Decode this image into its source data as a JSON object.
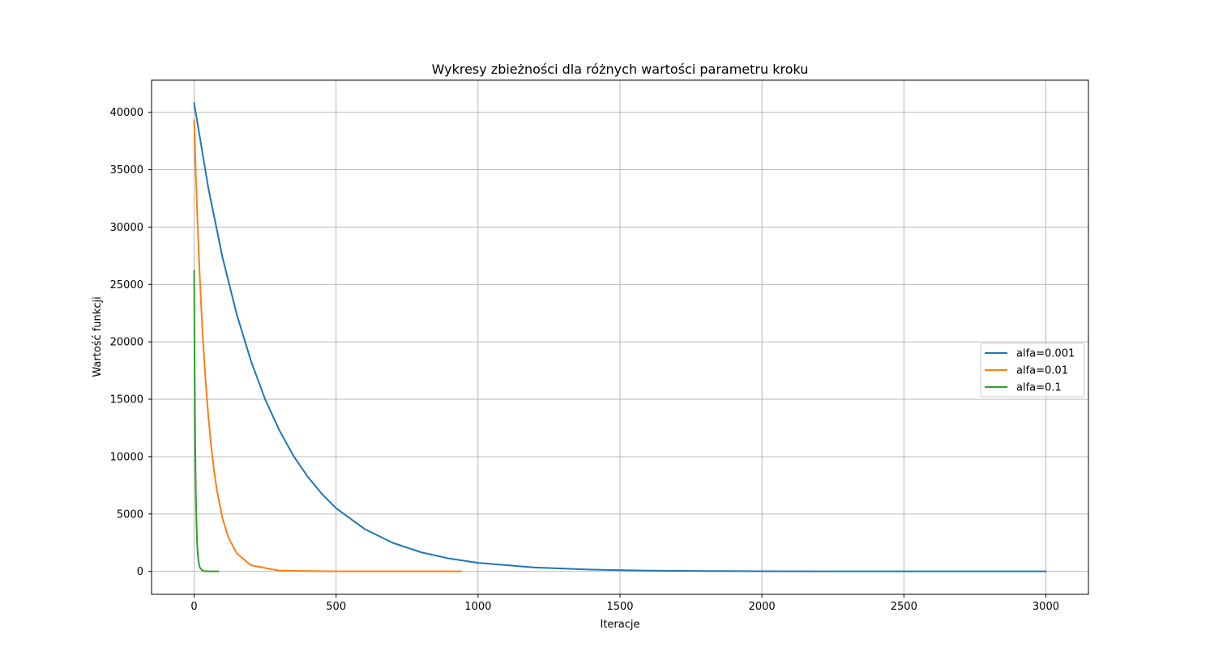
{
  "chart_data": {
    "type": "line",
    "title": "Wykresy zbieżności dla różnych wartości parametru kroku",
    "xlabel": "Iteracje",
    "ylabel": "Wartość funkcji",
    "xlim": [
      -150,
      3150
    ],
    "ylim": [
      -2000,
      42800
    ],
    "xticks": [
      0,
      500,
      1000,
      1500,
      2000,
      2500,
      3000
    ],
    "yticks": [
      0,
      5000,
      10000,
      15000,
      20000,
      25000,
      30000,
      35000,
      40000,
      45000
    ],
    "ytick_labels_shown": [
      0,
      5000,
      10000,
      15000,
      20000,
      25000,
      30000,
      35000,
      40000
    ],
    "grid": true,
    "legend_position": "center-right",
    "series": [
      {
        "name": "alfa=0.001",
        "color": "#1f77b4",
        "x": [
          0,
          50,
          100,
          150,
          200,
          250,
          300,
          350,
          400,
          450,
          500,
          600,
          700,
          800,
          900,
          1000,
          1200,
          1400,
          1600,
          1800,
          2000,
          2200,
          2500,
          2800,
          3000
        ],
        "values": [
          40800,
          33400,
          27350,
          22400,
          18350,
          15000,
          12300,
          10050,
          8250,
          6750,
          5500,
          3700,
          2480,
          1660,
          1110,
          745,
          335,
          150,
          67,
          30,
          14,
          6,
          2,
          1,
          0
        ]
      },
      {
        "name": "alfa=0.01",
        "color": "#ff7f0e",
        "x": [
          0,
          1,
          2,
          5,
          10,
          15,
          20,
          25,
          30,
          40,
          50,
          60,
          70,
          80,
          100,
          120,
          150,
          200,
          300,
          500,
          700,
          940
        ],
        "values": [
          39300,
          38500,
          37700,
          35300,
          31700,
          28500,
          25600,
          23000,
          20700,
          16700,
          13500,
          10900,
          8800,
          7100,
          4600,
          3000,
          1570,
          530,
          60,
          1,
          0,
          0
        ]
      },
      {
        "name": "alfa=0.1",
        "color": "#2ca02c",
        "x": [
          0,
          1,
          2,
          3,
          4,
          5,
          6,
          8,
          10,
          12,
          15,
          20,
          30,
          50,
          85
        ],
        "values": [
          26200,
          20900,
          16700,
          13400,
          10700,
          8600,
          6900,
          4400,
          2800,
          1800,
          950,
          330,
          40,
          1,
          0
        ]
      }
    ]
  }
}
